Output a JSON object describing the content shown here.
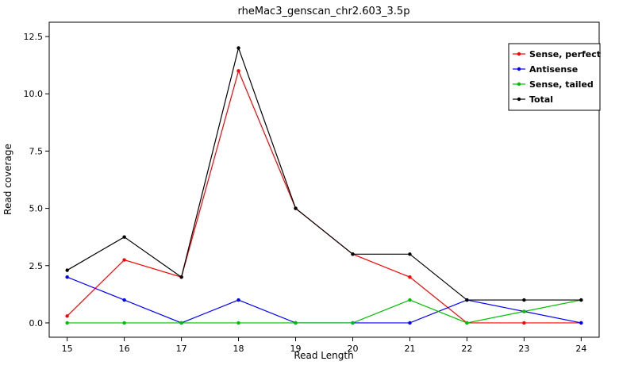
{
  "chart_data": {
    "type": "line",
    "title": "rheMac3_genscan_chr2.603_3.5p",
    "xlabel": "Read Length",
    "ylabel": "Read coverage",
    "x": [
      15,
      16,
      17,
      18,
      19,
      20,
      21,
      22,
      23,
      24
    ],
    "yticks": [
      0.0,
      2.5,
      5.0,
      7.5,
      10.0,
      12.5
    ],
    "ylim": [
      0,
      12.5
    ],
    "grid": false,
    "legend_position": "top-right",
    "series": [
      {
        "name": "Sense, perfect",
        "color": "#ff0000",
        "values": [
          0.3,
          2.75,
          2,
          11,
          5,
          3,
          2,
          0,
          0,
          0
        ]
      },
      {
        "name": "Antisense",
        "color": "#0000ff",
        "values": [
          2,
          1,
          0,
          1,
          0,
          0,
          0,
          1,
          0.5,
          0
        ]
      },
      {
        "name": "Sense, tailed",
        "color": "#00c000",
        "values": [
          0,
          0,
          0,
          0,
          0,
          0,
          1,
          0,
          0.5,
          1
        ]
      },
      {
        "name": "Total",
        "color": "#000000",
        "values": [
          2.3,
          3.75,
          2,
          12,
          5,
          3,
          3,
          1,
          1,
          1
        ]
      }
    ]
  }
}
